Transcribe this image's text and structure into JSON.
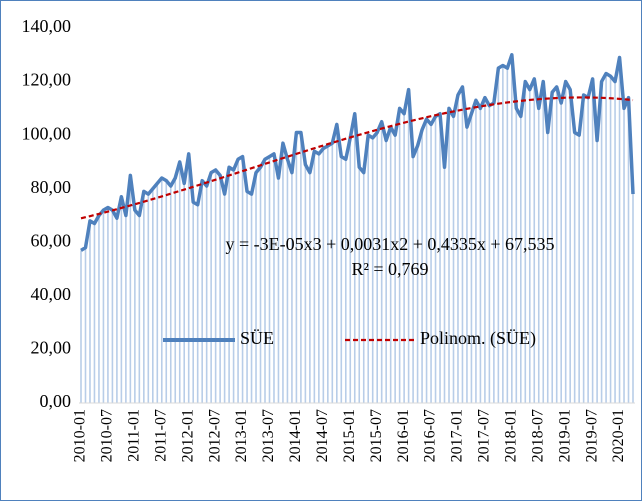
{
  "chart_data": {
    "type": "line",
    "categories": [
      "2010-01",
      null,
      null,
      null,
      null,
      null,
      "2010-07",
      null,
      null,
      null,
      null,
      null,
      "2011-01",
      null,
      null,
      null,
      null,
      null,
      "2011-07",
      null,
      null,
      null,
      null,
      null,
      "2012-01",
      null,
      null,
      null,
      null,
      null,
      "2012-07",
      null,
      null,
      null,
      null,
      null,
      "2013-01",
      null,
      null,
      null,
      null,
      null,
      "2013-07",
      null,
      null,
      null,
      null,
      null,
      "2014-01",
      null,
      null,
      null,
      null,
      null,
      "2014-07",
      null,
      null,
      null,
      null,
      null,
      "2015-01",
      null,
      null,
      null,
      null,
      null,
      "2015-07",
      null,
      null,
      null,
      null,
      null,
      "2016-01",
      null,
      null,
      null,
      null,
      null,
      "2016-07",
      null,
      null,
      null,
      null,
      null,
      "2017-01",
      null,
      null,
      null,
      null,
      null,
      "2017-07",
      null,
      null,
      null,
      null,
      null,
      "2018-01",
      null,
      null,
      null,
      null,
      null,
      "2018-07",
      null,
      null,
      null,
      null,
      null,
      "2019-01",
      null,
      null,
      null,
      null,
      null,
      "2019-07",
      null,
      null,
      null,
      null,
      null,
      "2020-01",
      null,
      null,
      null
    ],
    "series": [
      {
        "name": "SÜE",
        "color": "#4f81bd",
        "drop_color": "#b8cde8",
        "values": [
          57,
          58,
          68,
          67,
          70,
          72,
          73,
          72,
          69,
          77,
          70,
          85,
          72,
          70,
          79,
          78,
          80,
          82,
          84,
          83,
          81,
          84,
          90,
          82,
          93,
          75,
          74,
          83,
          81,
          86,
          87,
          85,
          78,
          88,
          87,
          91,
          92,
          79,
          78,
          86,
          88,
          91,
          92,
          93,
          84,
          97,
          91,
          86,
          101,
          101,
          89,
          86,
          94,
          93,
          95,
          96,
          97,
          104,
          92,
          91,
          99,
          108,
          88,
          86,
          100,
          99,
          101,
          105,
          98,
          103,
          100,
          110,
          108,
          117,
          92,
          96,
          102,
          106,
          104,
          107,
          108,
          88,
          110,
          107,
          115,
          118,
          103,
          108,
          113,
          110,
          114,
          111,
          112,
          125,
          126,
          125,
          130,
          110,
          107,
          120,
          117,
          121,
          110,
          120,
          101,
          116,
          118,
          112,
          120,
          117,
          101,
          100,
          115,
          114,
          121,
          98,
          120,
          123,
          122,
          120,
          129,
          110,
          114,
          78
        ]
      }
    ],
    "trendline": {
      "name": "Polinom. (SÜE)",
      "color": "#c00000",
      "degree": 3,
      "equation": "y = -3E-05x3 + 0,0031x2 + 0,4335x + 67,535",
      "r2": "R² = 0,769"
    },
    "ylim": [
      0,
      140
    ],
    "yticks": [
      {
        "value": 0,
        "label": "0,00"
      },
      {
        "value": 20,
        "label": "20,00"
      },
      {
        "value": 40,
        "label": "40,00"
      },
      {
        "value": 60,
        "label": "60,00"
      },
      {
        "value": 80,
        "label": "80,00"
      },
      {
        "value": 100,
        "label": "100,00"
      },
      {
        "value": 120,
        "label": "120,00"
      },
      {
        "value": 140,
        "label": "140,00"
      }
    ],
    "legend": "bottom"
  }
}
